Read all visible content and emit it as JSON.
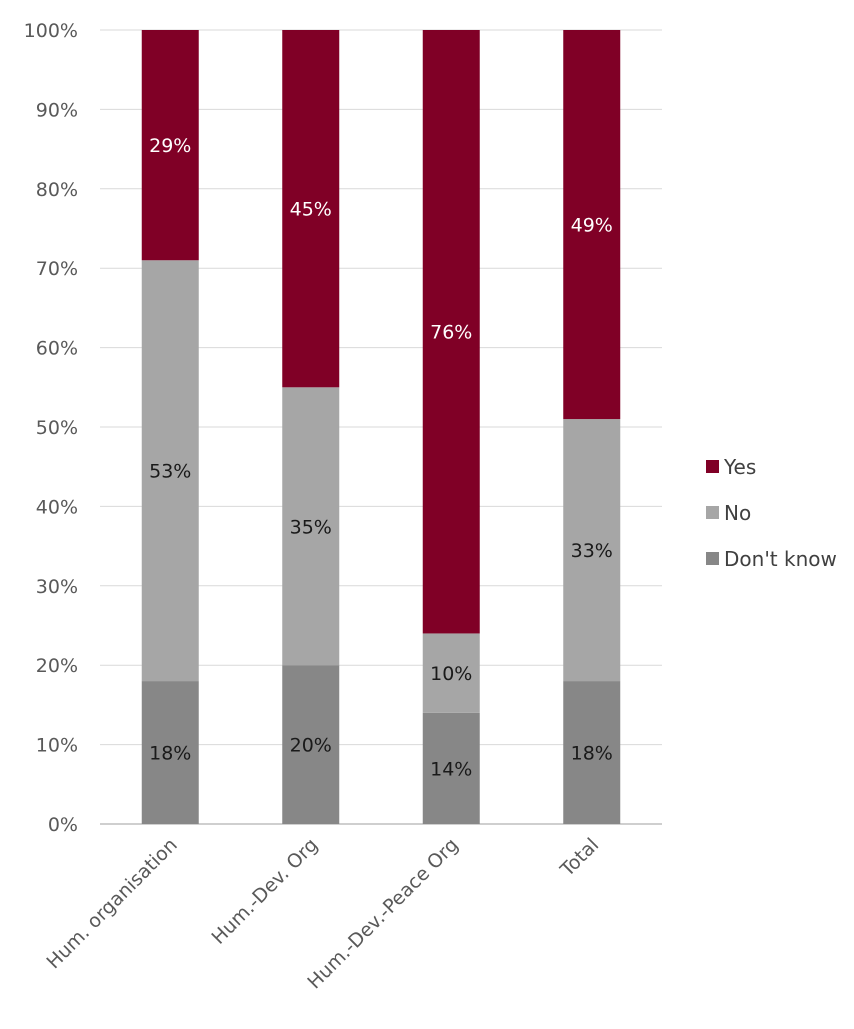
{
  "chart_data": {
    "type": "bar",
    "stacked": true,
    "categories": [
      "Hum. organisation",
      "Hum.-Dev. Org",
      "Hum.-Dev.-Peace Org",
      "Total"
    ],
    "series": [
      {
        "name": "Don't know",
        "values": [
          18,
          20,
          14,
          18
        ],
        "labels": [
          "18%",
          "20%",
          "14%",
          "18%"
        ],
        "color": "#878787",
        "label_color": "#1a1a1a"
      },
      {
        "name": "No",
        "values": [
          53,
          35,
          10,
          33
        ],
        "labels": [
          "53%",
          "35%",
          "10%",
          "33%"
        ],
        "color": "#a6a6a6",
        "label_color": "#1a1a1a"
      },
      {
        "name": "Yes",
        "values": [
          29,
          45,
          76,
          49
        ],
        "labels": [
          "29%",
          "45%",
          "76%",
          "49%"
        ],
        "color": "#800026",
        "label_color": "#ffffff"
      }
    ],
    "ylim": [
      0,
      100
    ],
    "yticks": [
      0,
      10,
      20,
      30,
      40,
      50,
      60,
      70,
      80,
      90,
      100
    ],
    "ytick_labels": [
      "0%",
      "10%",
      "20%",
      "30%",
      "40%",
      "50%",
      "60%",
      "70%",
      "80%",
      "90%",
      "100%"
    ],
    "grid": true,
    "legend_position": "right",
    "legend_order": [
      "Yes",
      "No",
      "Don't know"
    ],
    "title": "",
    "xlabel": "",
    "ylabel": ""
  }
}
